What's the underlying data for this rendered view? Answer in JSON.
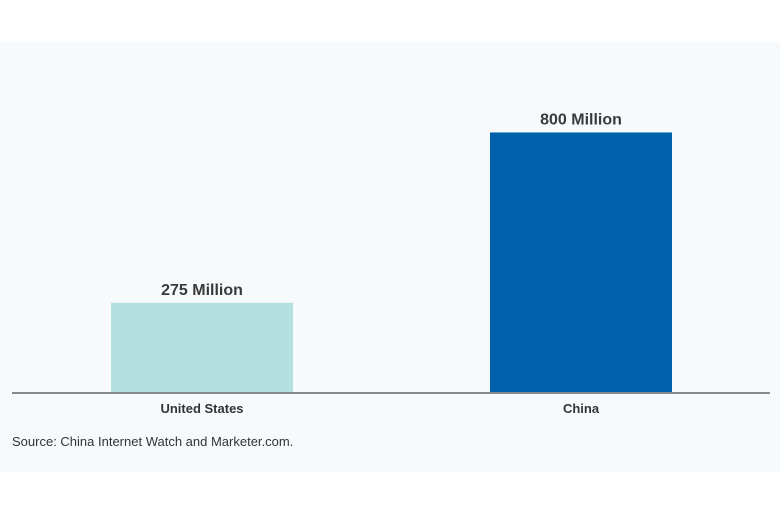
{
  "chart_data": {
    "type": "bar",
    "categories": [
      "United States",
      "China"
    ],
    "values": [
      275,
      800
    ],
    "data_labels": [
      "275 Million",
      "800 Million"
    ],
    "colors": [
      "#b3e1e0",
      "#0062ad"
    ],
    "title": "",
    "xlabel": "",
    "ylabel": "",
    "ylim": [
      0,
      900
    ],
    "grid": false
  },
  "source": "Source: China Internet Watch and Marketer.com.",
  "axis_color": "#8a8a8a"
}
